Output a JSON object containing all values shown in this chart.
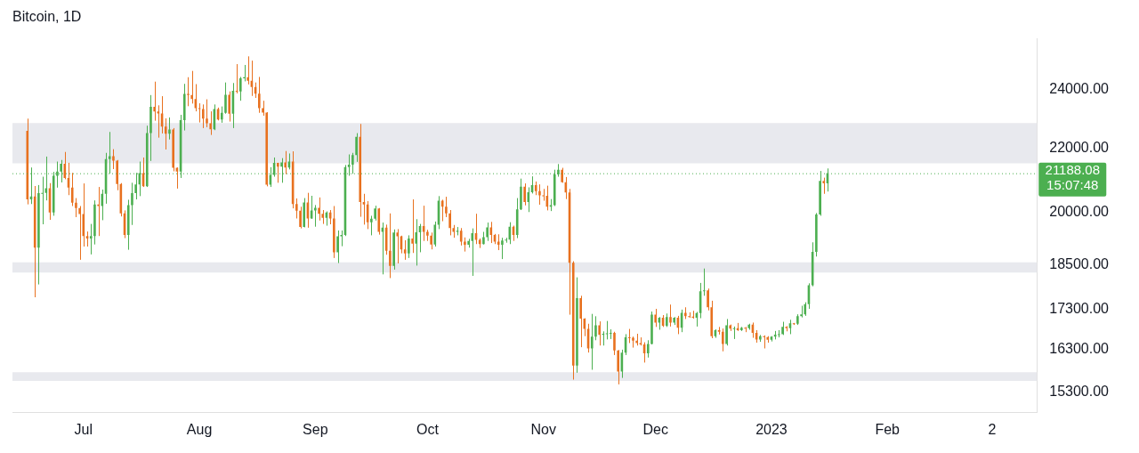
{
  "chart_data": {
    "type": "candlestick",
    "title": "Bitcoin, 1D",
    "log": "y",
    "legend": false,
    "grid": false,
    "xlim": [
      "2022-06-12",
      "2023-03-13"
    ],
    "xticks": [
      {
        "value": "2022-07-01",
        "label": "Jul"
      },
      {
        "value": "2022-08-01",
        "label": "Aug"
      },
      {
        "value": "2022-09-01",
        "label": "Sep"
      },
      {
        "value": "2022-10-01",
        "label": "Oct"
      },
      {
        "value": "2022-11-01",
        "label": "Nov"
      },
      {
        "value": "2022-12-01",
        "label": "Dec"
      },
      {
        "value": "2023-01-01",
        "label": "2023"
      },
      {
        "value": "2023-02-01",
        "label": "Feb"
      },
      {
        "value": "2023-03-01",
        "label": "2"
      }
    ],
    "ylim": [
      14840,
      25890
    ],
    "yticks": [
      {
        "value": 15300,
        "label": "15300.00"
      },
      {
        "value": 16300,
        "label": "16300.00"
      },
      {
        "value": 17300,
        "label": "17300.00"
      },
      {
        "value": 18500,
        "label": "18500.00"
      },
      {
        "value": 20000,
        "label": "20000.00"
      },
      {
        "value": 22000,
        "label": "22000.00"
      },
      {
        "value": 24000,
        "label": "24000.00"
      }
    ],
    "bands": [
      {
        "axis": "y",
        "from": 21500,
        "to": 22830,
        "color": "#e8e9ee"
      },
      {
        "axis": "y",
        "from": 18280,
        "to": 18560,
        "color": "#e8e9ee"
      },
      {
        "axis": "y",
        "from": 15560,
        "to": 15760,
        "color": "#e8e9ee"
      }
    ],
    "ref_lines": [
      {
        "axis": "y",
        "value": 21188.08,
        "label": "21188.08",
        "color": "#4caf50",
        "line_style": "dotted"
      }
    ],
    "annotations": [
      "15:07:48"
    ],
    "series": [
      {
        "x": [
          "2022-06-16",
          "2022-06-17",
          "2022-06-18",
          "2022-06-19",
          "2022-06-20",
          "2022-06-21",
          "2022-06-22",
          "2022-06-23",
          "2022-06-24",
          "2022-06-25",
          "2022-06-26",
          "2022-06-27",
          "2022-06-28",
          "2022-06-29",
          "2022-06-30",
          "2022-07-01",
          "2022-07-02",
          "2022-07-03",
          "2022-07-04",
          "2022-07-05",
          "2022-07-06",
          "2022-07-07",
          "2022-07-08",
          "2022-07-09",
          "2022-07-10",
          "2022-07-11",
          "2022-07-12",
          "2022-07-13",
          "2022-07-14",
          "2022-07-15",
          "2022-07-16",
          "2022-07-17",
          "2022-07-18",
          "2022-07-19",
          "2022-07-20",
          "2022-07-21",
          "2022-07-22",
          "2022-07-23",
          "2022-07-24",
          "2022-07-25",
          "2022-07-26",
          "2022-07-27",
          "2022-07-28",
          "2022-07-29",
          "2022-07-30",
          "2022-07-31",
          "2022-08-01",
          "2022-08-02",
          "2022-08-03",
          "2022-08-04",
          "2022-08-05",
          "2022-08-06",
          "2022-08-07",
          "2022-08-08",
          "2022-08-09",
          "2022-08-10",
          "2022-08-11",
          "2022-08-12",
          "2022-08-13",
          "2022-08-14",
          "2022-08-15",
          "2022-08-16",
          "2022-08-17",
          "2022-08-18",
          "2022-08-19",
          "2022-08-20",
          "2022-08-21",
          "2022-08-22",
          "2022-08-23",
          "2022-08-24",
          "2022-08-25",
          "2022-08-26",
          "2022-08-27",
          "2022-08-28",
          "2022-08-29",
          "2022-08-30",
          "2022-08-31",
          "2022-09-01",
          "2022-09-02",
          "2022-09-03",
          "2022-09-04",
          "2022-09-05",
          "2022-09-06",
          "2022-09-07",
          "2022-09-08",
          "2022-09-09",
          "2022-09-10",
          "2022-09-11",
          "2022-09-12",
          "2022-09-13",
          "2022-09-14",
          "2022-09-15",
          "2022-09-16",
          "2022-09-17",
          "2022-09-18",
          "2022-09-19",
          "2022-09-20",
          "2022-09-21",
          "2022-09-22",
          "2022-09-23",
          "2022-09-24",
          "2022-09-25",
          "2022-09-26",
          "2022-09-27",
          "2022-09-28",
          "2022-09-29",
          "2022-09-30",
          "2022-10-01",
          "2022-10-02",
          "2022-10-03",
          "2022-10-04",
          "2022-10-05",
          "2022-10-06",
          "2022-10-07",
          "2022-10-08",
          "2022-10-09",
          "2022-10-10",
          "2022-10-11",
          "2022-10-12",
          "2022-10-13",
          "2022-10-14",
          "2022-10-15",
          "2022-10-16",
          "2022-10-17",
          "2022-10-18",
          "2022-10-19",
          "2022-10-20",
          "2022-10-21",
          "2022-10-22",
          "2022-10-23",
          "2022-10-24",
          "2022-10-25",
          "2022-10-26",
          "2022-10-27",
          "2022-10-28",
          "2022-10-29",
          "2022-10-30",
          "2022-10-31",
          "2022-11-01",
          "2022-11-02",
          "2022-11-03",
          "2022-11-04",
          "2022-11-05",
          "2022-11-06",
          "2022-11-07",
          "2022-11-08",
          "2022-11-09",
          "2022-11-10",
          "2022-11-11",
          "2022-11-12",
          "2022-11-13",
          "2022-11-14",
          "2022-11-15",
          "2022-11-16",
          "2022-11-17",
          "2022-11-18",
          "2022-11-19",
          "2022-11-20",
          "2022-11-21",
          "2022-11-22",
          "2022-11-23",
          "2022-11-24",
          "2022-11-25",
          "2022-11-26",
          "2022-11-27",
          "2022-11-28",
          "2022-11-29",
          "2022-11-30",
          "2022-12-01",
          "2022-12-02",
          "2022-12-03",
          "2022-12-04",
          "2022-12-05",
          "2022-12-06",
          "2022-12-07",
          "2022-12-08",
          "2022-12-09",
          "2022-12-10",
          "2022-12-11",
          "2022-12-12",
          "2022-12-13",
          "2022-12-14",
          "2022-12-15",
          "2022-12-16",
          "2022-12-17",
          "2022-12-18",
          "2022-12-19",
          "2022-12-20",
          "2022-12-21",
          "2022-12-22",
          "2022-12-23",
          "2022-12-24",
          "2022-12-25",
          "2022-12-26",
          "2022-12-27",
          "2022-12-28",
          "2022-12-29",
          "2022-12-30",
          "2022-12-31",
          "2023-01-01",
          "2023-01-02",
          "2023-01-03",
          "2023-01-04",
          "2023-01-05",
          "2023-01-06",
          "2023-01-07",
          "2023-01-08",
          "2023-01-09",
          "2023-01-10",
          "2023-01-11",
          "2023-01-12",
          "2023-01-13",
          "2023-01-14",
          "2023-01-15",
          "2023-01-16"
        ],
        "ohlc": [
          [
            22570,
            22980,
            20230,
            20380
          ],
          [
            20380,
            21370,
            20240,
            20470
          ],
          [
            20470,
            20790,
            17620,
            18970
          ],
          [
            18970,
            20820,
            17960,
            20570
          ],
          [
            20570,
            21080,
            19640,
            20580
          ],
          [
            20580,
            21720,
            20350,
            20720
          ],
          [
            20720,
            20880,
            19770,
            19990
          ],
          [
            19990,
            21230,
            19890,
            21110
          ],
          [
            21110,
            21560,
            20740,
            21240
          ],
          [
            21240,
            21610,
            20900,
            21490
          ],
          [
            21490,
            21870,
            21000,
            21040
          ],
          [
            21040,
            21520,
            20510,
            20740
          ],
          [
            20740,
            21200,
            20180,
            20280
          ],
          [
            20280,
            20420,
            19850,
            20120
          ],
          [
            20120,
            20180,
            18630,
            19940
          ],
          [
            19940,
            20870,
            19000,
            19300
          ],
          [
            19300,
            19430,
            19000,
            19230
          ],
          [
            19230,
            19650,
            18780,
            19300
          ],
          [
            19300,
            20350,
            19060,
            20230
          ],
          [
            20230,
            20760,
            19300,
            20180
          ],
          [
            20180,
            20680,
            19760,
            20550
          ],
          [
            20550,
            21840,
            20250,
            21640
          ],
          [
            21640,
            22530,
            21180,
            21730
          ],
          [
            21730,
            21960,
            21320,
            21590
          ],
          [
            21590,
            21610,
            20660,
            20850
          ],
          [
            20850,
            20880,
            19870,
            19960
          ],
          [
            19960,
            20050,
            19240,
            19330
          ],
          [
            19330,
            20370,
            18910,
            20210
          ],
          [
            20210,
            20890,
            19620,
            20570
          ],
          [
            20570,
            21200,
            20380,
            20840
          ],
          [
            20840,
            21560,
            20480,
            21190
          ],
          [
            21190,
            21690,
            20760,
            20780
          ],
          [
            20780,
            22740,
            20760,
            22490
          ],
          [
            22490,
            23800,
            21580,
            23390
          ],
          [
            23390,
            24280,
            22910,
            23230
          ],
          [
            23230,
            23440,
            22340,
            23160
          ],
          [
            23160,
            23760,
            22480,
            22710
          ],
          [
            22710,
            22990,
            21950,
            22470
          ],
          [
            22470,
            23020,
            22280,
            22610
          ],
          [
            22610,
            22660,
            21250,
            21360
          ],
          [
            21360,
            21370,
            20710,
            21240
          ],
          [
            21240,
            23110,
            21040,
            22930
          ],
          [
            22930,
            24200,
            22580,
            23840
          ],
          [
            23840,
            24440,
            23410,
            23800
          ],
          [
            23800,
            24670,
            23500,
            23660
          ],
          [
            23660,
            24190,
            23230,
            23340
          ],
          [
            23340,
            23510,
            22850,
            23310
          ],
          [
            23310,
            23470,
            22660,
            22980
          ],
          [
            22980,
            23650,
            22690,
            22820
          ],
          [
            22820,
            23230,
            22430,
            22620
          ],
          [
            22620,
            23470,
            22590,
            23310
          ],
          [
            23310,
            23360,
            22920,
            22950
          ],
          [
            22950,
            23400,
            22840,
            23180
          ],
          [
            23180,
            24250,
            23150,
            23810
          ],
          [
            23810,
            23930,
            22880,
            23150
          ],
          [
            23150,
            24230,
            22660,
            23950
          ],
          [
            23950,
            24920,
            23860,
            23930
          ],
          [
            23930,
            24450,
            23600,
            24400
          ],
          [
            24400,
            24890,
            24290,
            24440
          ],
          [
            24440,
            25210,
            24180,
            24310
          ],
          [
            24310,
            25050,
            23770,
            24090
          ],
          [
            24090,
            24250,
            23700,
            23850
          ],
          [
            23850,
            24450,
            23180,
            23340
          ],
          [
            23340,
            23600,
            23080,
            23190
          ],
          [
            23190,
            23200,
            20780,
            20830
          ],
          [
            20830,
            21380,
            20760,
            21140
          ],
          [
            21140,
            21690,
            21080,
            21520
          ],
          [
            21520,
            21520,
            20890,
            21400
          ],
          [
            21400,
            21670,
            20890,
            21530
          ],
          [
            21530,
            21900,
            21160,
            21370
          ],
          [
            21370,
            21820,
            21310,
            21560
          ],
          [
            21560,
            21890,
            20110,
            20240
          ],
          [
            20240,
            20410,
            19810,
            20040
          ],
          [
            20040,
            20160,
            19520,
            19560
          ],
          [
            19560,
            20420,
            19550,
            20290
          ],
          [
            20290,
            20580,
            19540,
            19810
          ],
          [
            19810,
            20490,
            19800,
            20050
          ],
          [
            20050,
            20210,
            19570,
            20130
          ],
          [
            20130,
            20440,
            19750,
            19950
          ],
          [
            19950,
            20060,
            19650,
            19830
          ],
          [
            19830,
            20020,
            19600,
            19990
          ],
          [
            19990,
            20060,
            19640,
            19810
          ],
          [
            19810,
            20180,
            18680,
            18840
          ],
          [
            18840,
            19460,
            18540,
            19290
          ],
          [
            19290,
            19460,
            19010,
            19330
          ],
          [
            19330,
            21450,
            19300,
            21380
          ],
          [
            21380,
            21790,
            21110,
            21460
          ],
          [
            21460,
            21840,
            21170,
            21770
          ],
          [
            21770,
            22490,
            21550,
            22370
          ],
          [
            22370,
            22800,
            19860,
            20300
          ],
          [
            20300,
            20550,
            19630,
            20230
          ],
          [
            20230,
            20330,
            19500,
            19700
          ],
          [
            19700,
            19890,
            19320,
            19800
          ],
          [
            19800,
            20190,
            19750,
            20110
          ],
          [
            20110,
            20120,
            19340,
            19420
          ],
          [
            19420,
            19690,
            18230,
            19540
          ],
          [
            19540,
            19630,
            18770,
            18880
          ],
          [
            18880,
            19960,
            18130,
            18460
          ],
          [
            18460,
            19490,
            18360,
            19400
          ],
          [
            19400,
            19500,
            18530,
            19290
          ],
          [
            19290,
            19310,
            18810,
            18920
          ],
          [
            18920,
            19180,
            18630,
            18810
          ],
          [
            18810,
            19320,
            18680,
            19230
          ],
          [
            19230,
            20380,
            18820,
            19080
          ],
          [
            19080,
            19790,
            18470,
            19410
          ],
          [
            19410,
            19650,
            18840,
            19590
          ],
          [
            19590,
            20190,
            19160,
            19420
          ],
          [
            19420,
            19480,
            19160,
            19310
          ],
          [
            19310,
            19400,
            18920,
            19060
          ],
          [
            19060,
            19720,
            19000,
            19630
          ],
          [
            19630,
            20480,
            19500,
            20340
          ],
          [
            20340,
            20370,
            19730,
            20160
          ],
          [
            20160,
            20460,
            19850,
            19960
          ],
          [
            19960,
            20060,
            19320,
            19530
          ],
          [
            19530,
            19620,
            19250,
            19420
          ],
          [
            19420,
            19560,
            19320,
            19450
          ],
          [
            19450,
            19530,
            19030,
            19140
          ],
          [
            19140,
            19260,
            18860,
            19050
          ],
          [
            19050,
            19220,
            18970,
            19160
          ],
          [
            19160,
            19520,
            18190,
            19380
          ],
          [
            19380,
            19950,
            19070,
            19190
          ],
          [
            19190,
            19230,
            18960,
            19070
          ],
          [
            19070,
            19420,
            19060,
            19270
          ],
          [
            19270,
            19690,
            19160,
            19550
          ],
          [
            19550,
            19710,
            19100,
            19330
          ],
          [
            19330,
            19360,
            19070,
            19140
          ],
          [
            19140,
            19350,
            18900,
            19050
          ],
          [
            19050,
            19250,
            18650,
            19170
          ],
          [
            19170,
            19250,
            19110,
            19200
          ],
          [
            19200,
            19700,
            19070,
            19570
          ],
          [
            19570,
            19600,
            19160,
            19330
          ],
          [
            19330,
            20420,
            19240,
            20080
          ],
          [
            20080,
            21020,
            20060,
            20770
          ],
          [
            20770,
            20870,
            20200,
            20300
          ],
          [
            20300,
            20750,
            20000,
            20600
          ],
          [
            20600,
            21090,
            20560,
            20820
          ],
          [
            20820,
            20930,
            20510,
            20630
          ],
          [
            20630,
            20840,
            20220,
            20500
          ],
          [
            20500,
            20700,
            20340,
            20490
          ],
          [
            20490,
            20800,
            20050,
            20160
          ],
          [
            20160,
            20390,
            20030,
            20210
          ],
          [
            20210,
            21300,
            20180,
            21150
          ],
          [
            21150,
            21480,
            21080,
            21300
          ],
          [
            21300,
            21360,
            20890,
            20910
          ],
          [
            20910,
            21070,
            20390,
            20590
          ],
          [
            20590,
            20700,
            17170,
            18550
          ],
          [
            18550,
            18590,
            15590,
            15920
          ],
          [
            15920,
            18150,
            15750,
            17600
          ],
          [
            17600,
            17660,
            16360,
            17070
          ],
          [
            17070,
            17080,
            16630,
            16810
          ],
          [
            16810,
            16940,
            16230,
            16330
          ],
          [
            16330,
            17190,
            15820,
            16620
          ],
          [
            16620,
            17130,
            16530,
            16900
          ],
          [
            16900,
            17000,
            16400,
            16660
          ],
          [
            16660,
            16750,
            16400,
            16690
          ],
          [
            16690,
            17010,
            16550,
            16700
          ],
          [
            16700,
            16800,
            16560,
            16710
          ],
          [
            16710,
            16740,
            16170,
            16280
          ],
          [
            16280,
            16290,
            15480,
            15780
          ],
          [
            15780,
            16300,
            15630,
            16230
          ],
          [
            16230,
            16680,
            16170,
            16600
          ],
          [
            16600,
            16810,
            16460,
            16590
          ],
          [
            16590,
            16620,
            16350,
            16520
          ],
          [
            16520,
            16690,
            16400,
            16460
          ],
          [
            16460,
            16600,
            16400,
            16430
          ],
          [
            16430,
            16480,
            15990,
            16210
          ],
          [
            16210,
            16530,
            16110,
            16440
          ],
          [
            16440,
            17250,
            16430,
            17170
          ],
          [
            17170,
            17320,
            16860,
            16970
          ],
          [
            16970,
            17110,
            16790,
            17090
          ],
          [
            17090,
            17160,
            16860,
            16890
          ],
          [
            16890,
            17200,
            16860,
            17110
          ],
          [
            17110,
            17430,
            16870,
            16970
          ],
          [
            16970,
            17110,
            16910,
            17090
          ],
          [
            17090,
            17140,
            16680,
            16840
          ],
          [
            16840,
            17300,
            16730,
            17220
          ],
          [
            17220,
            17360,
            17060,
            17130
          ],
          [
            17130,
            17230,
            17090,
            17120
          ],
          [
            17120,
            17270,
            17070,
            17090
          ],
          [
            17090,
            17240,
            16870,
            17210
          ],
          [
            17210,
            18000,
            17080,
            17780
          ],
          [
            17780,
            18390,
            17660,
            17800
          ],
          [
            17800,
            17850,
            17280,
            17360
          ],
          [
            17360,
            17530,
            16580,
            16630
          ],
          [
            16630,
            16800,
            16590,
            16780
          ],
          [
            16780,
            16860,
            16670,
            16740
          ],
          [
            16740,
            16820,
            16260,
            16440
          ],
          [
            16440,
            17060,
            16400,
            16900
          ],
          [
            16900,
            16920,
            16760,
            16820
          ],
          [
            16820,
            16870,
            16560,
            16830
          ],
          [
            16830,
            16960,
            16760,
            16780
          ],
          [
            16780,
            16860,
            16760,
            16840
          ],
          [
            16840,
            16860,
            16730,
            16830
          ],
          [
            16830,
            16940,
            16790,
            16920
          ],
          [
            16920,
            16970,
            16590,
            16710
          ],
          [
            16710,
            16780,
            16470,
            16550
          ],
          [
            16550,
            16660,
            16490,
            16630
          ],
          [
            16630,
            16650,
            16330,
            16610
          ],
          [
            16610,
            16630,
            16470,
            16540
          ],
          [
            16540,
            16630,
            16500,
            16620
          ],
          [
            16620,
            16760,
            16550,
            16670
          ],
          [
            16670,
            16780,
            16600,
            16680
          ],
          [
            16680,
            16990,
            16660,
            16860
          ],
          [
            16860,
            16880,
            16750,
            16830
          ],
          [
            16830,
            17040,
            16680,
            16950
          ],
          [
            16950,
            16960,
            16910,
            16940
          ],
          [
            16940,
            17180,
            16910,
            17130
          ],
          [
            17130,
            17400,
            17100,
            17180
          ],
          [
            17180,
            17490,
            17140,
            17440
          ],
          [
            17440,
            17990,
            17320,
            17940
          ],
          [
            17940,
            19120,
            17910,
            18850
          ],
          [
            18850,
            19970,
            18720,
            19930
          ],
          [
            19930,
            21260,
            19890,
            20950
          ],
          [
            20950,
            21050,
            20550,
            20870
          ],
          [
            20870,
            21340,
            20620,
            21190
          ]
        ],
        "colors": [
          "#e8711f",
          "#4caf50",
          "#e8711f",
          "#4caf50",
          "#4caf50",
          "#4caf50",
          "#e8711f",
          "#4caf50",
          "#4caf50",
          "#4caf50",
          "#e8711f",
          "#e8711f",
          "#e8711f",
          "#e8711f",
          "#e8711f",
          "#e8711f",
          "#e8711f",
          "#4caf50",
          "#4caf50",
          "#e8711f",
          "#4caf50",
          "#4caf50",
          "#4caf50",
          "#e8711f",
          "#e8711f",
          "#e8711f",
          "#e8711f",
          "#4caf50",
          "#4caf50",
          "#4caf50",
          "#4caf50",
          "#e8711f",
          "#4caf50",
          "#4caf50",
          "#e8711f",
          "#e8711f",
          "#e8711f",
          "#e8711f",
          "#4caf50",
          "#e8711f",
          "#e8711f",
          "#4caf50",
          "#4caf50",
          "#e8711f",
          "#e8711f",
          "#e8711f",
          "#e8711f",
          "#e8711f",
          "#e8711f",
          "#e8711f",
          "#4caf50",
          "#e8711f",
          "#4caf50",
          "#4caf50",
          "#e8711f",
          "#4caf50",
          "#e8711f",
          "#4caf50",
          "#4caf50",
          "#e8711f",
          "#e8711f",
          "#e8711f",
          "#e8711f",
          "#e8711f",
          "#e8711f",
          "#4caf50",
          "#4caf50",
          "#e8711f",
          "#4caf50",
          "#e8711f",
          "#4caf50",
          "#e8711f",
          "#e8711f",
          "#e8711f",
          "#4caf50",
          "#e8711f",
          "#4caf50",
          "#4caf50",
          "#e8711f",
          "#e8711f",
          "#4caf50",
          "#e8711f",
          "#e8711f",
          "#4caf50",
          "#4caf50",
          "#4caf50",
          "#4caf50",
          "#4caf50",
          "#4caf50",
          "#e8711f",
          "#e8711f",
          "#e8711f",
          "#4caf50",
          "#4caf50",
          "#e8711f",
          "#4caf50",
          "#e8711f",
          "#e8711f",
          "#4caf50",
          "#e8711f",
          "#e8711f",
          "#e8711f",
          "#4caf50",
          "#e8711f",
          "#4caf50",
          "#4caf50",
          "#e8711f",
          "#e8711f",
          "#e8711f",
          "#4caf50",
          "#4caf50",
          "#e8711f",
          "#e8711f",
          "#e8711f",
          "#e8711f",
          "#4caf50",
          "#e8711f",
          "#e8711f",
          "#4caf50",
          "#4caf50",
          "#e8711f",
          "#e8711f",
          "#4caf50",
          "#4caf50",
          "#e8711f",
          "#e8711f",
          "#e8711f",
          "#4caf50",
          "#4caf50",
          "#4caf50",
          "#e8711f",
          "#4caf50",
          "#4caf50",
          "#e8711f",
          "#4caf50",
          "#4caf50",
          "#e8711f",
          "#e8711f",
          "#e8711f",
          "#e8711f",
          "#4caf50",
          "#4caf50",
          "#4caf50",
          "#e8711f",
          "#e8711f",
          "#e8711f",
          "#e8711f",
          "#4caf50",
          "#e8711f",
          "#e8711f",
          "#e8711f",
          "#4caf50",
          "#4caf50",
          "#e8711f",
          "#4caf50",
          "#4caf50",
          "#4caf50",
          "#e8711f",
          "#e8711f",
          "#4caf50",
          "#4caf50",
          "#e8711f",
          "#e8711f",
          "#e8711f",
          "#e8711f",
          "#e8711f",
          "#4caf50",
          "#4caf50",
          "#e8711f",
          "#4caf50",
          "#e8711f",
          "#4caf50",
          "#e8711f",
          "#4caf50",
          "#e8711f",
          "#4caf50",
          "#e8711f",
          "#e8711f",
          "#e8711f",
          "#4caf50",
          "#4caf50",
          "#4caf50",
          "#e8711f",
          "#e8711f",
          "#4caf50",
          "#e8711f",
          "#e8711f",
          "#4caf50",
          "#e8711f",
          "#4caf50",
          "#e8711f",
          "#4caf50",
          "#e8711f",
          "#4caf50",
          "#e8711f",
          "#e8711f",
          "#4caf50",
          "#e8711f",
          "#e8711f",
          "#4caf50",
          "#4caf50",
          "#4caf50",
          "#4caf50",
          "#e8711f",
          "#4caf50",
          "#e8711f",
          "#4caf50",
          "#4caf50",
          "#4caf50",
          "#4caf50",
          "#4caf50",
          "#4caf50",
          "#4caf50",
          "#e8711f",
          "#4caf50"
        ]
      }
    ]
  }
}
